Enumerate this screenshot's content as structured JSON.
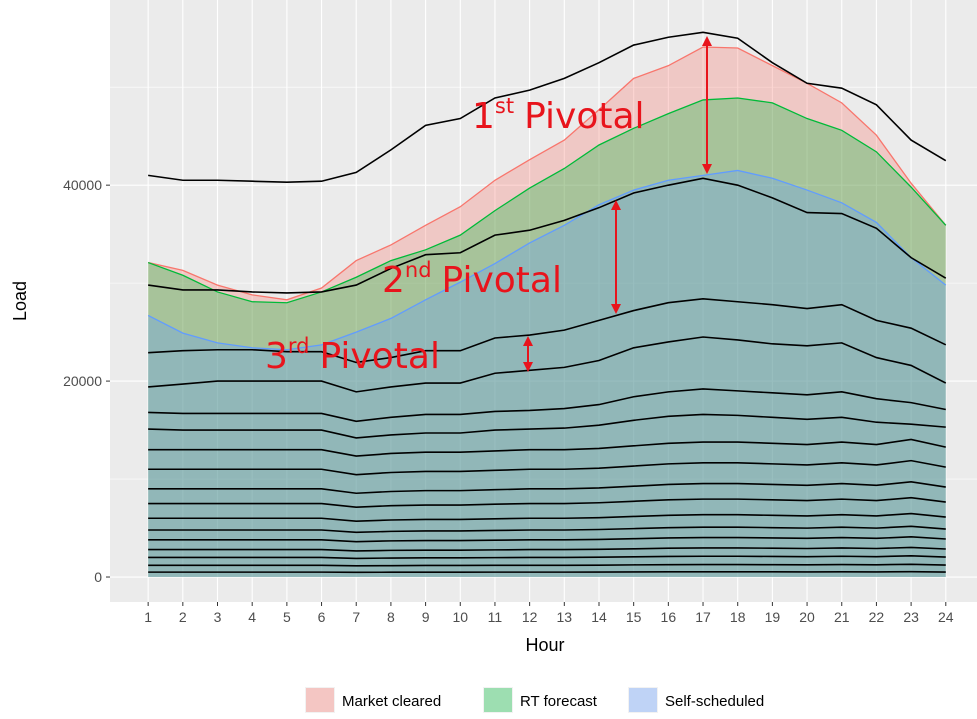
{
  "chart_data": {
    "type": "area",
    "x_label": "Hour",
    "y_label": "Load",
    "x": [
      1,
      2,
      3,
      4,
      5,
      6,
      7,
      8,
      9,
      10,
      11,
      12,
      13,
      14,
      15,
      16,
      17,
      18,
      19,
      20,
      21,
      22,
      23,
      24
    ],
    "xlim": [
      -0.1,
      24.9
    ],
    "xticks": [
      1,
      2,
      3,
      4,
      5,
      6,
      7,
      8,
      9,
      10,
      11,
      12,
      13,
      14,
      15,
      16,
      17,
      18,
      19,
      20,
      21,
      22,
      23,
      24
    ],
    "ylim": [
      -2550,
      58900
    ],
    "yticks": [
      0,
      20000,
      40000
    ],
    "y_minor_ticks": [
      10000,
      30000,
      50000
    ],
    "grid": true,
    "legend_position": "bottom",
    "series": [
      {
        "name": "Market cleared",
        "color": "#f8766d",
        "values": [
          32100,
          31300,
          29800,
          28800,
          28300,
          29500,
          32300,
          33900,
          35900,
          37800,
          40500,
          42600,
          44600,
          47700,
          50900,
          52200,
          54100,
          54000,
          52200,
          50400,
          48400,
          45100,
          40200,
          35900
        ]
      },
      {
        "name": "RT forecast",
        "color": "#00ba38",
        "values": [
          32100,
          30800,
          29100,
          28100,
          28000,
          29100,
          30600,
          32300,
          33400,
          34900,
          37400,
          39700,
          41700,
          44100,
          45800,
          47300,
          48700,
          48900,
          48400,
          46800,
          45600,
          43400,
          39800,
          35900
        ]
      },
      {
        "name": "Self-scheduled",
        "color": "#619cff",
        "values": [
          26700,
          24900,
          23900,
          23400,
          23200,
          23700,
          25000,
          26400,
          28300,
          30100,
          32000,
          34100,
          35900,
          38000,
          39500,
          40500,
          41000,
          41500,
          40700,
          39500,
          38200,
          36200,
          32600,
          29800
        ]
      }
    ],
    "lines": [
      {
        "color": "#000000",
        "values": [
          41000,
          40500,
          40500,
          40400,
          40300,
          40400,
          41300,
          43600,
          46100,
          46800,
          48900,
          49700,
          50900,
          52500,
          54300,
          55100,
          55600,
          55000,
          52500,
          50400,
          49900,
          48200,
          44600,
          42500
        ]
      },
      {
        "color": "#000000",
        "values": [
          29800,
          29300,
          29300,
          29100,
          29000,
          29100,
          29800,
          31500,
          32900,
          33100,
          34900,
          35400,
          36400,
          37700,
          39200,
          40000,
          40700,
          40000,
          38700,
          37200,
          37100,
          35600,
          32600,
          30500
        ]
      },
      {
        "color": "#000000",
        "values": [
          22900,
          23100,
          23200,
          23200,
          23000,
          23000,
          21900,
          22400,
          23100,
          23100,
          24400,
          24700,
          25200,
          26200,
          27200,
          28000,
          28400,
          28100,
          27800,
          27400,
          27800,
          26200,
          25400,
          23700
        ]
      },
      {
        "color": "#000000",
        "values": [
          19400,
          19700,
          20000,
          20000,
          20000,
          20000,
          18900,
          19400,
          19800,
          19800,
          20800,
          21100,
          21400,
          22100,
          23400,
          24000,
          24500,
          24200,
          23800,
          23600,
          23900,
          22400,
          21600,
          19800
        ]
      },
      {
        "color": "#000000",
        "values": [
          16800,
          16700,
          16700,
          16700,
          16700,
          16700,
          15900,
          16300,
          16600,
          16600,
          16900,
          17000,
          17200,
          17600,
          18400,
          18900,
          19200,
          19000,
          18800,
          18600,
          18900,
          18200,
          17800,
          17100
        ]
      },
      {
        "color": "#000000",
        "values": [
          15100,
          15000,
          15000,
          15000,
          15000,
          15000,
          14200,
          14500,
          14700,
          14700,
          15000,
          15100,
          15200,
          15500,
          16000,
          16400,
          16600,
          16500,
          16300,
          16100,
          16300,
          15800,
          15600,
          15300
        ]
      },
      {
        "color": "#000000",
        "values": [
          13000,
          13000,
          13000,
          13000,
          13000,
          13000,
          12350,
          12610,
          12740,
          12740,
          12870,
          13000,
          13000,
          13130,
          13390,
          13650,
          13780,
          13780,
          13650,
          13520,
          13780,
          13520,
          14040,
          13260
        ]
      },
      {
        "color": "#000000",
        "values": [
          11000,
          11000,
          11000,
          11000,
          11000,
          11000,
          10450,
          10670,
          10780,
          10780,
          10890,
          11000,
          11000,
          11110,
          11330,
          11550,
          11660,
          11660,
          11550,
          11440,
          11660,
          11440,
          11880,
          11220
        ]
      },
      {
        "color": "#000000",
        "values": [
          9000,
          9000,
          9000,
          9000,
          9000,
          9000,
          8550,
          8730,
          8820,
          8820,
          8910,
          9000,
          9000,
          9090,
          9270,
          9450,
          9540,
          9540,
          9450,
          9360,
          9540,
          9360,
          9720,
          9180
        ]
      },
      {
        "color": "#000000",
        "values": [
          7500,
          7500,
          7500,
          7500,
          7500,
          7500,
          7130,
          7280,
          7350,
          7350,
          7430,
          7500,
          7500,
          7580,
          7730,
          7880,
          7950,
          7950,
          7880,
          7800,
          7950,
          7800,
          8100,
          7650
        ]
      },
      {
        "color": "#000000",
        "values": [
          6000,
          6000,
          6000,
          6000,
          6000,
          6000,
          5700,
          5820,
          5880,
          5880,
          5940,
          6000,
          6000,
          6060,
          6180,
          6300,
          6360,
          6360,
          6300,
          6240,
          6360,
          6240,
          6480,
          6120
        ]
      },
      {
        "color": "#000000",
        "values": [
          4800,
          4800,
          4800,
          4800,
          4800,
          4800,
          4560,
          4660,
          4700,
          4700,
          4750,
          4800,
          4800,
          4850,
          4940,
          5040,
          5090,
          5090,
          5040,
          4990,
          5090,
          4990,
          5180,
          4900
        ]
      },
      {
        "color": "#000000",
        "values": [
          3800,
          3800,
          3800,
          3800,
          3800,
          3800,
          3610,
          3690,
          3720,
          3720,
          3760,
          3800,
          3800,
          3840,
          3910,
          3990,
          4030,
          4030,
          3990,
          3950,
          4030,
          3950,
          4100,
          3880
        ]
      },
      {
        "color": "#000000",
        "values": [
          2800,
          2800,
          2800,
          2800,
          2800,
          2800,
          2660,
          2720,
          2740,
          2740,
          2770,
          2800,
          2800,
          2830,
          2880,
          2940,
          2970,
          2970,
          2940,
          2910,
          2970,
          2910,
          3020,
          2860
        ]
      },
      {
        "color": "#000000",
        "values": [
          2000,
          2000,
          2000,
          2000,
          2000,
          2000,
          1900,
          1940,
          1960,
          1960,
          1980,
          2000,
          2000,
          2020,
          2060,
          2100,
          2120,
          2120,
          2100,
          2080,
          2120,
          2080,
          2160,
          2040
        ]
      },
      {
        "color": "#000000",
        "values": [
          1200,
          1200,
          1200,
          1200,
          1200,
          1200,
          1140,
          1160,
          1180,
          1180,
          1190,
          1200,
          1200,
          1210,
          1240,
          1260,
          1270,
          1270,
          1260,
          1250,
          1270,
          1250,
          1300,
          1220
        ]
      },
      {
        "color": "#000000",
        "values": [
          500,
          500,
          500,
          500,
          500,
          500,
          480,
          490,
          490,
          490,
          500,
          500,
          500,
          510,
          520,
          530,
          530,
          530,
          530,
          520,
          530,
          520,
          540,
          510
        ]
      }
    ],
    "annotations": [
      {
        "text": "1",
        "sup": "st",
        "rest": "Pivotal"
      },
      {
        "text": "2",
        "sup": "nd",
        "rest": "Pivotal"
      },
      {
        "text": "3",
        "sup": "rd",
        "rest": "Pivotal"
      }
    ]
  }
}
